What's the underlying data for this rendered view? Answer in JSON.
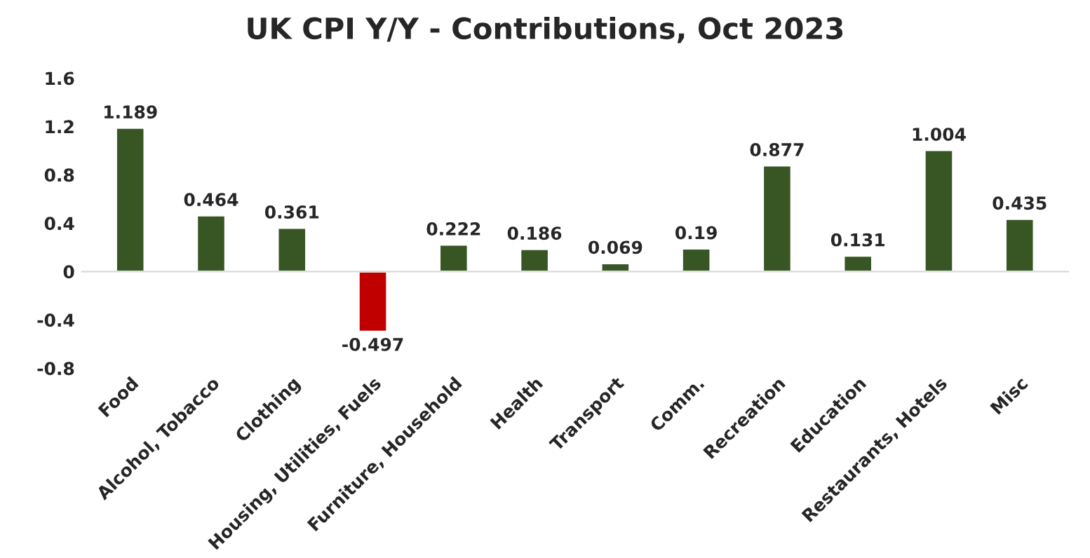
{
  "chart_data": {
    "type": "bar",
    "title": "UK CPI Y/Y - Contributions, Oct 2023",
    "categories": [
      "Food",
      "Alcohol, Tobacco",
      "Clothing",
      "Housing, Utilities, Fuels",
      "Furniture, Household",
      "Health",
      "Transport",
      "Comm.",
      "Recreation",
      "Education",
      "Restaurants, Hotels",
      "Misc"
    ],
    "values": [
      1.189,
      0.464,
      0.361,
      -0.497,
      0.222,
      0.186,
      0.069,
      0.19,
      0.877,
      0.131,
      1.004,
      0.435
    ],
    "colors": [
      "#375623",
      "#375623",
      "#375623",
      "#c00000",
      "#375623",
      "#375623",
      "#375623",
      "#375623",
      "#375623",
      "#375623",
      "#375623",
      "#375623"
    ],
    "ylim": [
      -0.8,
      1.6
    ],
    "yticks": [
      -0.8,
      -0.4,
      0,
      0.4,
      0.8,
      1.2,
      1.6
    ],
    "data_labels": true,
    "legend": false
  }
}
